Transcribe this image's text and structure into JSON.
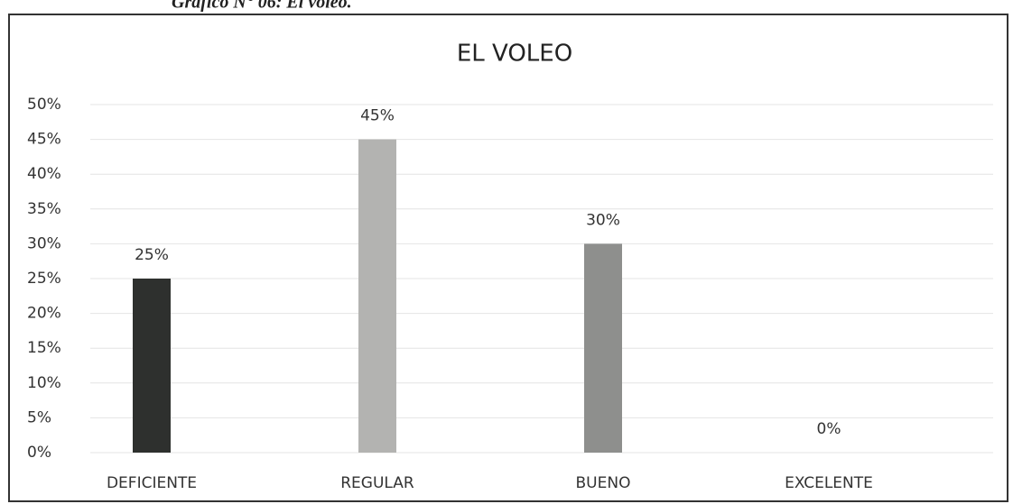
{
  "chart_data": {
    "type": "bar",
    "caption": "Gráfico N° 06: El voleo.",
    "title": "EL VOLEO",
    "categories": [
      "DEFICIENTE",
      "REGULAR",
      "BUENO",
      "EXCELENTE"
    ],
    "values": [
      25,
      45,
      30,
      0
    ],
    "value_labels": [
      "25%",
      "45%",
      "30%",
      "0%"
    ],
    "colors": [
      "#2e302e",
      "#b3b3b1",
      "#8e8f8d",
      "#8e8f8d"
    ],
    "ylim": [
      0,
      50
    ],
    "yticks": [
      {
        "value": 0,
        "label": "0%"
      },
      {
        "value": 5,
        "label": "5%"
      },
      {
        "value": 10,
        "label": "10%"
      },
      {
        "value": 15,
        "label": "15%"
      },
      {
        "value": 20,
        "label": "20%"
      },
      {
        "value": 25,
        "label": "25%"
      },
      {
        "value": 30,
        "label": "30%"
      },
      {
        "value": 35,
        "label": "35%"
      },
      {
        "value": 40,
        "label": "40%"
      },
      {
        "value": 45,
        "label": "45%"
      },
      {
        "value": 50,
        "label": "50%"
      }
    ],
    "grid": true
  }
}
